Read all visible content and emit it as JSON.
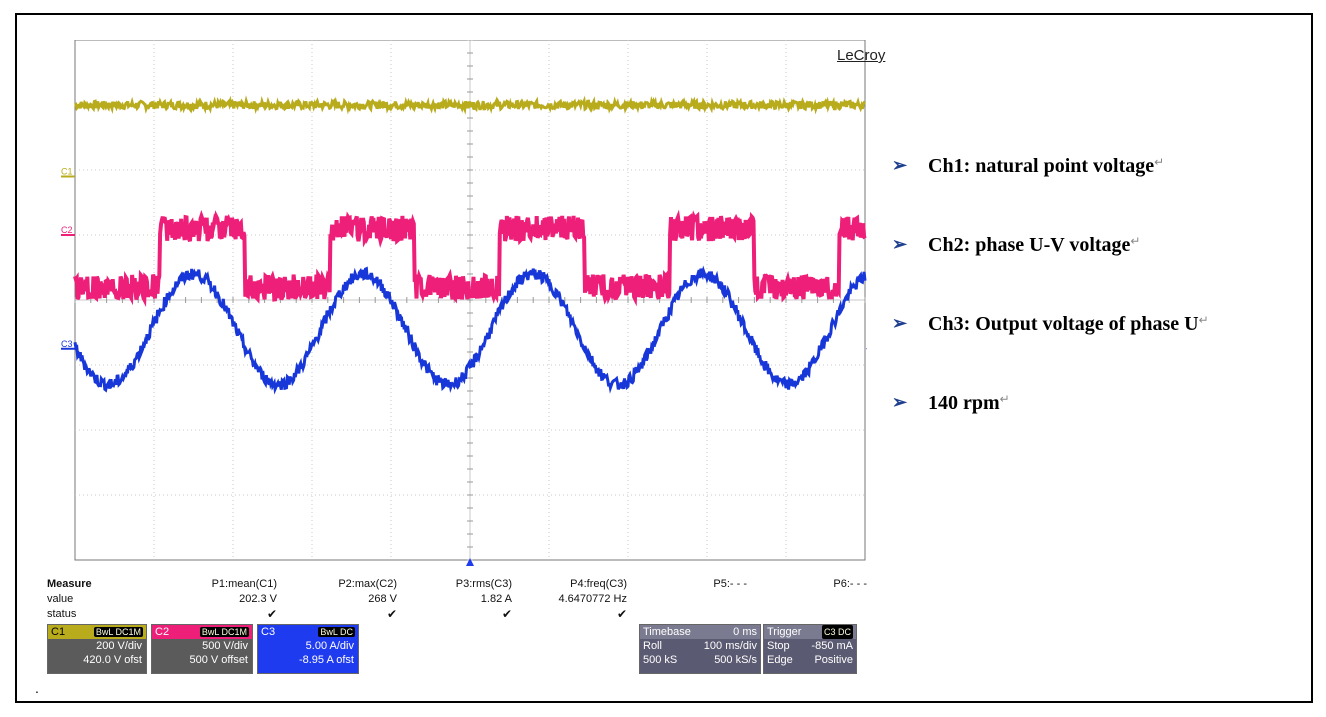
{
  "brand": "LeCroy",
  "chart_data": {
    "type": "line",
    "grid": true,
    "channel_markers": [
      "C1",
      "C2",
      "C3"
    ],
    "series": [
      {
        "name": "C1",
        "color": "#b8ab1c",
        "shape": "flat",
        "level_div": 3.0,
        "noise_div": 0.03
      },
      {
        "name": "C2",
        "color": "#ee1f79",
        "shape": "square",
        "levels_div": [
          1.1,
          0.7,
          0.35
        ],
        "period_div": 2.15
      },
      {
        "name": "C3",
        "color": "#1837d8",
        "shape": "sine",
        "center_div": -0.45,
        "amplitude_div": 0.85,
        "period_div": 2.15,
        "peaks_at_div": [
          1.5,
          3.65,
          5.8,
          7.95
        ]
      }
    ]
  },
  "measure": {
    "title": "Measure",
    "row_labels": [
      "value",
      "status"
    ],
    "columns": [
      {
        "name": "P1:mean(C1)",
        "value": "202.3 V",
        "status": "✔"
      },
      {
        "name": "P2:max(C2)",
        "value": "268 V",
        "status": "✔"
      },
      {
        "name": "P3:rms(C3)",
        "value": "1.82 A",
        "status": "✔"
      },
      {
        "name": "P4:freq(C3)",
        "value": "4.6470772 Hz",
        "status": "✔"
      },
      {
        "name": "P5:- - -",
        "value": "",
        "status": ""
      },
      {
        "name": "P6:- - -",
        "value": "",
        "status": ""
      }
    ]
  },
  "channels": [
    {
      "id": "C1",
      "coupling": "BwL DC1M",
      "scale": "200 V/div",
      "offset": "420.0 V ofst",
      "color": "#b8ab1c"
    },
    {
      "id": "C2",
      "coupling": "BwL DC1M",
      "scale": "500 V/div",
      "offset": "500 V offset",
      "color": "#ee1f79"
    },
    {
      "id": "C3",
      "coupling": "BwL DC",
      "scale": "5.00 A/div",
      "offset": "-8.95 A ofst",
      "color": "#1f3bf0"
    }
  ],
  "timebase": {
    "label": "Timebase",
    "delay": "0 ms",
    "mode": "Roll",
    "rate_div": "100 ms/div",
    "samples": "500 kS",
    "sample_rate": "500 kS/s"
  },
  "trigger": {
    "label": "Trigger",
    "source": "C3 DC",
    "state": "Stop",
    "level": "-850 mA",
    "type": "Edge",
    "slope": "Positive"
  },
  "legend": [
    {
      "text": "Ch1: natural point voltage"
    },
    {
      "text": "Ch2: phase U-V voltage"
    },
    {
      "text": "Ch3: Output voltage of phase U"
    },
    {
      "text": "140 rpm"
    }
  ],
  "return_mark": "↵",
  "arrow_glyph": "➢",
  "dot": "."
}
